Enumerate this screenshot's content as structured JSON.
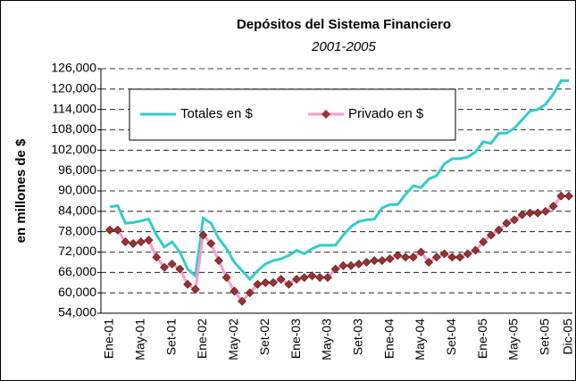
{
  "chart_data": {
    "type": "line",
    "title": "Depósitos del Sistema Financiero",
    "subtitle": "2001-2005",
    "y_label": "en millones de $",
    "categories": [
      "Ene-01",
      null,
      null,
      null,
      "May-01",
      null,
      null,
      null,
      "Set-01",
      null,
      null,
      null,
      "Ene-02",
      null,
      null,
      null,
      "May-02",
      null,
      null,
      null,
      "Set-02",
      null,
      null,
      null,
      "Ene-03",
      null,
      null,
      null,
      "May-03",
      null,
      null,
      null,
      "Set-03",
      null,
      null,
      null,
      "Ene-04",
      null,
      null,
      null,
      "May-04",
      null,
      null,
      null,
      "Set-04",
      null,
      null,
      null,
      "Ene-05",
      null,
      null,
      null,
      "May-05",
      null,
      null,
      null,
      "Set-05",
      null,
      null,
      "Dic-05"
    ],
    "series": [
      {
        "name": "Totales en $",
        "color": "#33cccc",
        "marker": "none",
        "values": [
          85300,
          85700,
          80500,
          80700,
          81200,
          81700,
          77000,
          73500,
          75000,
          72000,
          67000,
          65000,
          82000,
          80500,
          76000,
          73000,
          69000,
          66500,
          64000,
          66500,
          68500,
          69500,
          70000,
          71000,
          72500,
          71500,
          73000,
          74000,
          74000,
          74000,
          77000,
          79500,
          81000,
          81500,
          81700,
          85000,
          86000,
          86000,
          89000,
          91500,
          91000,
          93500,
          94500,
          98000,
          99500,
          99500,
          100000,
          101500,
          104500,
          104000,
          107000,
          107000,
          108500,
          111000,
          113500,
          114000,
          115500,
          118500,
          122500,
          122500
        ]
      },
      {
        "name": "Privado en $",
        "color": "#ff99cc",
        "marker_color": "#993333",
        "marker": "diamond",
        "values": [
          78500,
          78500,
          75000,
          74500,
          75000,
          75500,
          70500,
          67500,
          68500,
          67000,
          62500,
          61000,
          77000,
          74500,
          69500,
          64500,
          60500,
          57500,
          60000,
          62500,
          63000,
          63000,
          64000,
          62500,
          64000,
          64500,
          65000,
          64500,
          64500,
          67000,
          68000,
          68000,
          68500,
          69000,
          69500,
          69500,
          70000,
          71000,
          70500,
          70500,
          72000,
          69000,
          70500,
          71500,
          70500,
          70500,
          71500,
          72500,
          75000,
          77000,
          78500,
          80500,
          81500,
          83000,
          83500,
          83500,
          84000,
          85500,
          88500,
          88500
        ]
      }
    ],
    "ylim": [
      54000,
      126000
    ],
    "yticks": [
      {
        "value": 54000,
        "label": "54,000"
      },
      {
        "value": 60000,
        "label": "60,000"
      },
      {
        "value": 66000,
        "label": "66,000"
      },
      {
        "value": 72000,
        "label": "72,000"
      },
      {
        "value": 78000,
        "label": "78,000"
      },
      {
        "value": 84000,
        "label": "84,000"
      },
      {
        "value": 90000,
        "label": "90,000"
      },
      {
        "value": 96000,
        "label": "96,000"
      },
      {
        "value": 102000,
        "label": "102,000"
      },
      {
        "value": 108000,
        "label": "108,000"
      },
      {
        "value": 114000,
        "label": "114,000"
      },
      {
        "value": 120000,
        "label": "120,000"
      },
      {
        "value": 126000,
        "label": "126,000"
      }
    ],
    "grid": true,
    "legend": "upper left"
  }
}
